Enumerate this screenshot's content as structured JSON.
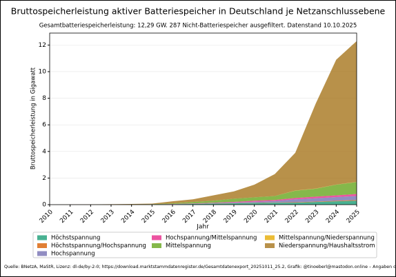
{
  "chart_data": {
    "type": "stacked_area",
    "title": "Bruttospeicherleistung aktiver Batteriespeicher in Deutschland je Netzanschlussebene",
    "subtitle": "Gesamtbatteriespeicherleistung: 12,29 GW. 287 Nicht-Batteriespeicher ausgefiltert. Datenstand 10.10.2025",
    "xlabel": "Jahr",
    "ylabel": "Bruttospeicherleistung in Gigawatt",
    "source": "Quelle: BNetzA, MaStR, Lizenz: dl-de/by-2-0; https://download.marktstammdatenregister.de/Gesamtdatenexport_20251011_25.2, Grafik: @tinoeberl@mastodon.online – Angaben ohne Gewähr.",
    "x": [
      2010,
      2011,
      2012,
      2013,
      2014,
      2015,
      2016,
      2017,
      2018,
      2019,
      2020,
      2021,
      2022,
      2023,
      2024,
      2025
    ],
    "xlim": [
      2010,
      2025
    ],
    "xticks": [
      2010,
      2011,
      2012,
      2013,
      2014,
      2015,
      2016,
      2017,
      2018,
      2019,
      2020,
      2021,
      2022,
      2023,
      2024,
      2025
    ],
    "ylim": [
      0,
      12.9
    ],
    "yticks": [
      0,
      2,
      4,
      6,
      8,
      10,
      12
    ],
    "grid": true,
    "series": [
      {
        "name": "Höchstspannung",
        "color": "#1b9e77",
        "values": [
          0,
          0,
          0,
          0,
          0.01,
          0.02,
          0.03,
          0.05,
          0.08,
          0.1,
          0.12,
          0.15,
          0.15,
          0.2,
          0.25,
          0.3
        ]
      },
      {
        "name": "Höchstspannung/Hochspannung",
        "color": "#d95f02",
        "values": [
          0,
          0,
          0,
          0,
          0,
          0,
          0,
          0,
          0.01,
          0.01,
          0.02,
          0.02,
          0.03,
          0.03,
          0.04,
          0.05
        ]
      },
      {
        "name": "Hochspannung",
        "color": "#7570b3",
        "values": [
          0,
          0,
          0,
          0,
          0,
          0,
          0.01,
          0.02,
          0.03,
          0.05,
          0.08,
          0.1,
          0.22,
          0.25,
          0.28,
          0.3
        ]
      },
      {
        "name": "Hochspannung/Mittelspannung",
        "color": "#e7298a",
        "values": [
          0,
          0,
          0,
          0,
          0,
          0,
          0.01,
          0.02,
          0.03,
          0.05,
          0.08,
          0.08,
          0.1,
          0.12,
          0.13,
          0.15
        ]
      },
      {
        "name": "Mittelspannung",
        "color": "#66a61e",
        "values": [
          0,
          0,
          0,
          0,
          0,
          0.01,
          0.05,
          0.11,
          0.15,
          0.24,
          0.25,
          0.3,
          0.55,
          0.6,
          0.8,
          0.9
        ]
      },
      {
        "name": "Mittelspannung/Niederspannung",
        "color": "#e6ab02",
        "values": [
          0,
          0,
          0,
          0,
          0,
          0,
          0,
          0,
          0,
          0,
          0,
          0,
          0.01,
          0.01,
          0.01,
          0.01
        ]
      },
      {
        "name": "Niederspannung/Haushaltsstrom",
        "color": "#a6761d",
        "values": [
          0,
          0.01,
          0.02,
          0.03,
          0.04,
          0.05,
          0.15,
          0.2,
          0.4,
          0.55,
          0.95,
          1.65,
          2.84,
          6.39,
          9.39,
          10.59
        ]
      }
    ]
  }
}
